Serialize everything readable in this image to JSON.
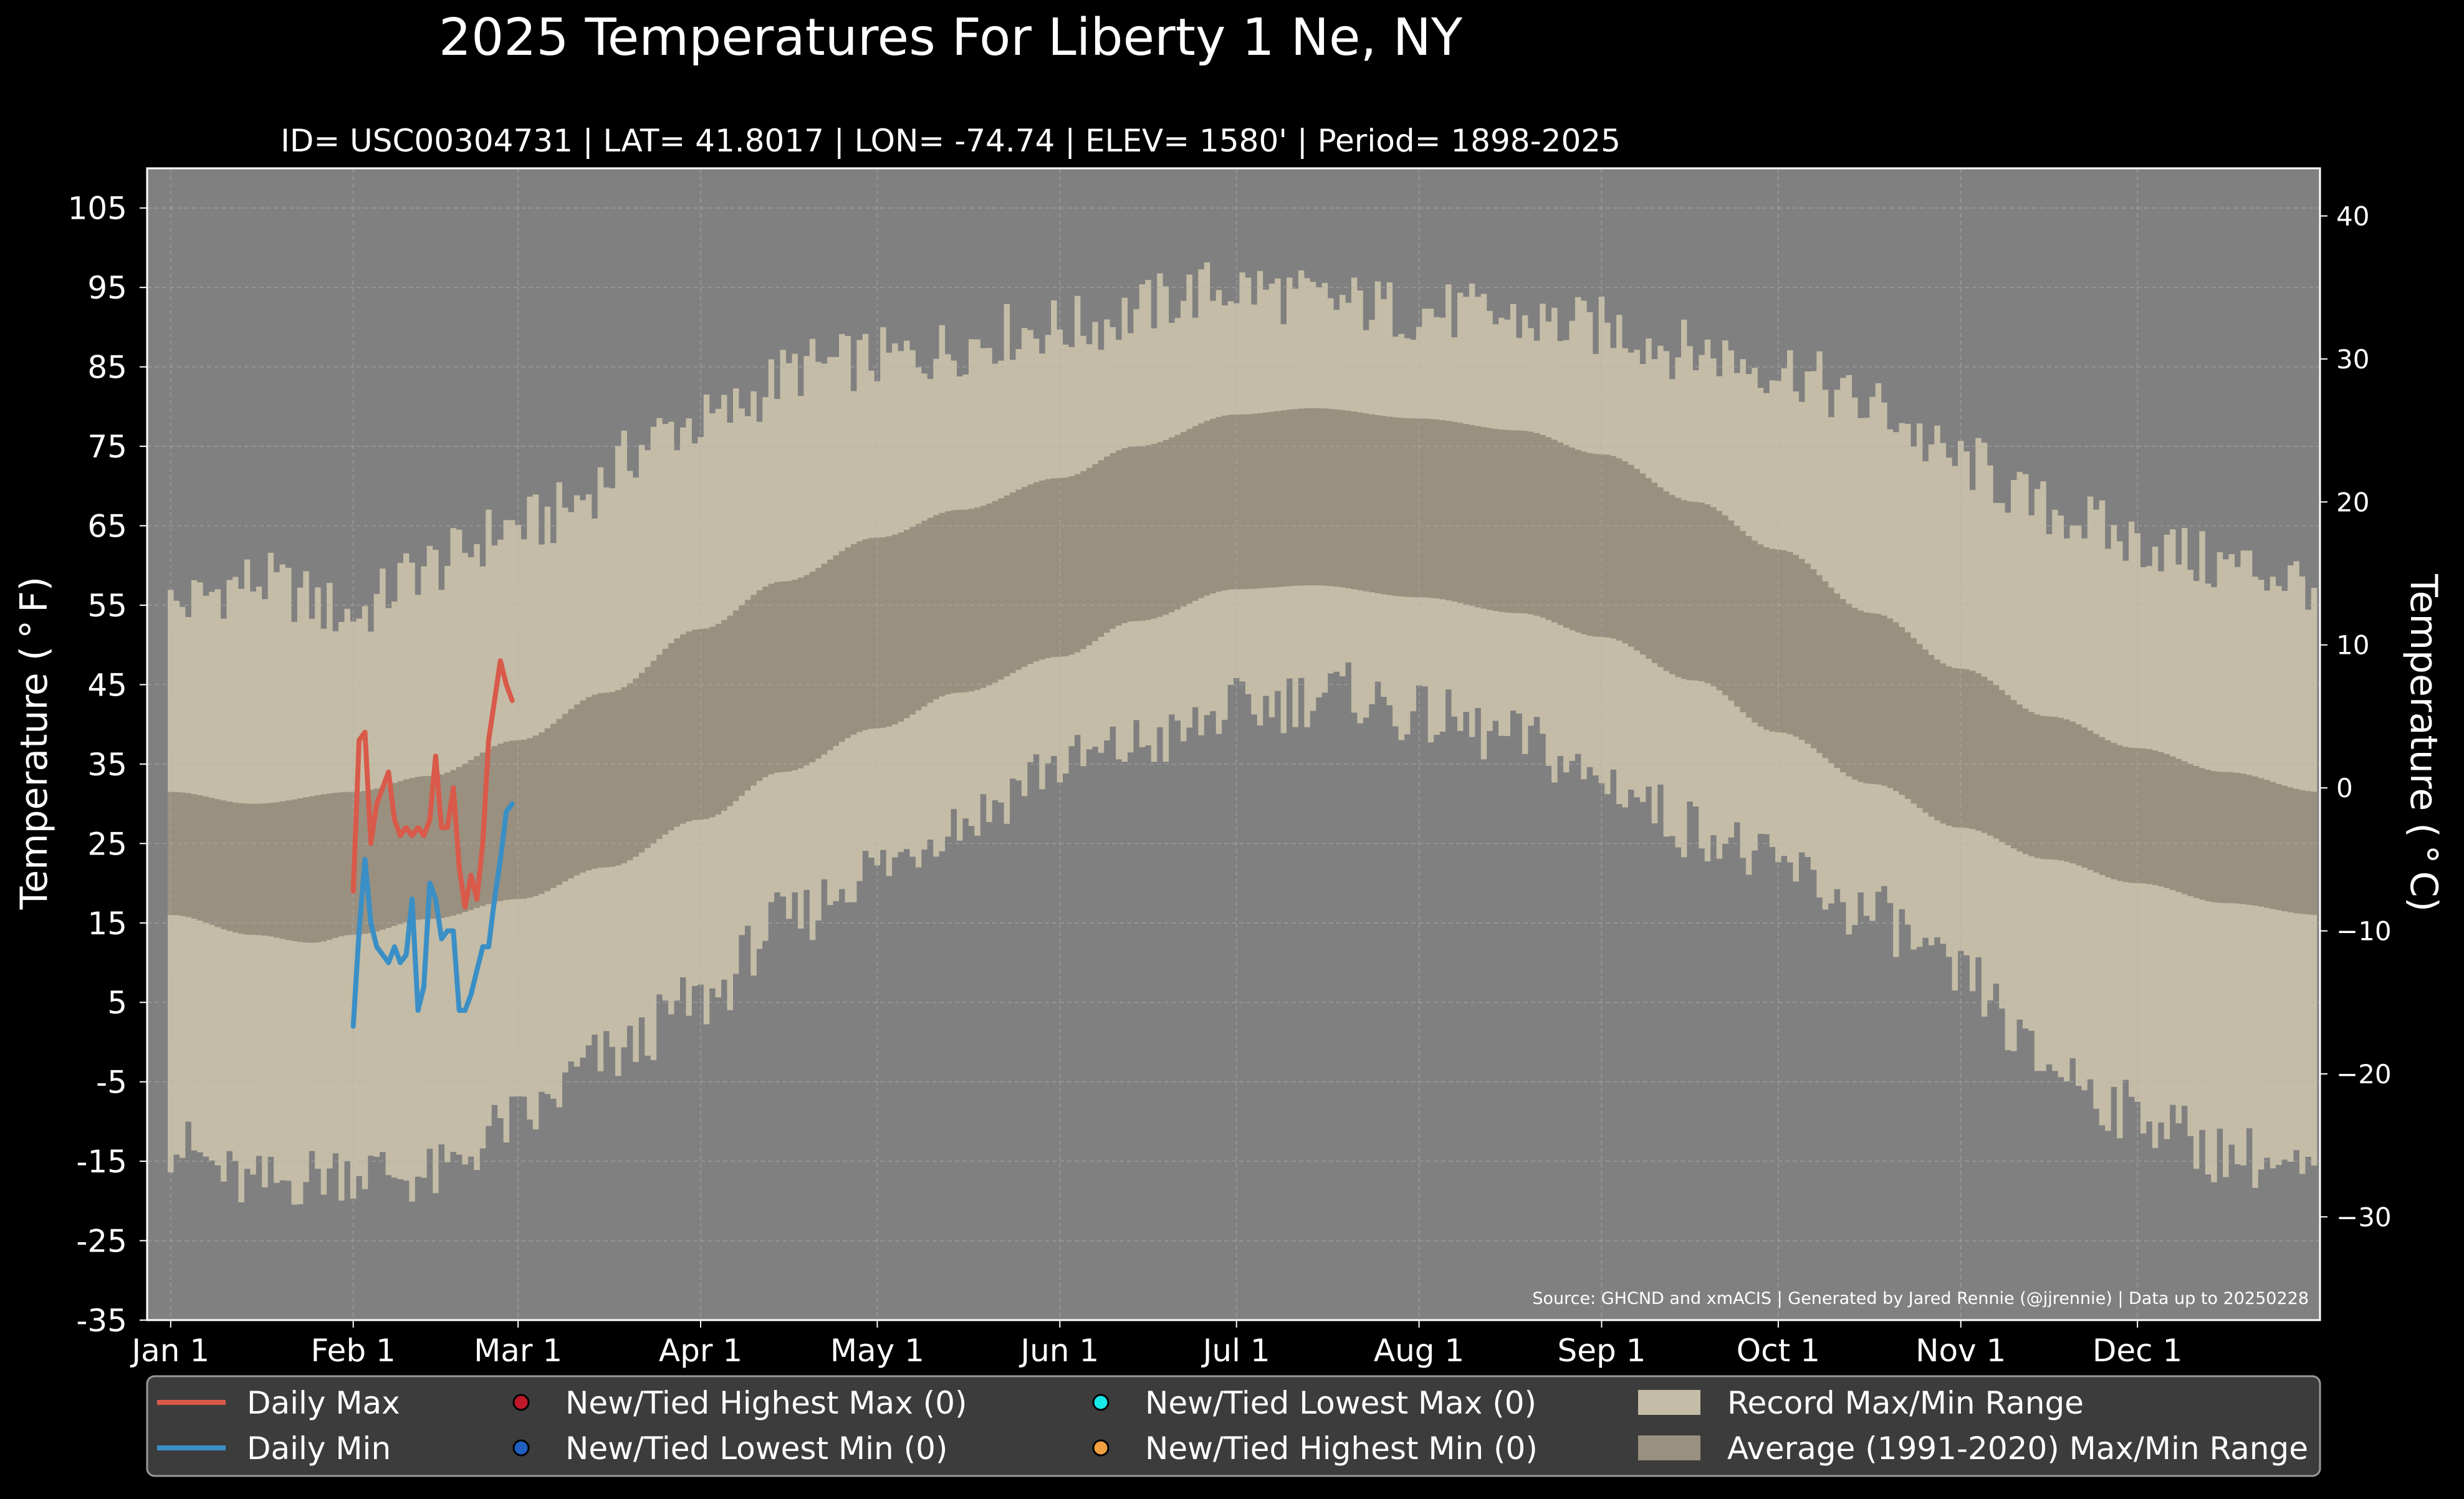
{
  "chart_data": {
    "type": "line",
    "title": "2025 Temperatures For Liberty 1 Ne, NY",
    "subtitle": "ID= USC00304731 | LAT= 41.8017 | LON= -74.74 | ELEV= 1580' | Period= 1898-2025",
    "ylabel": "Temperature ($^\\circ$F)",
    "ylabel_display": "Temperature ( ° F)",
    "ylabel_right": "Temperature ( ° C)",
    "ylim": [
      -35,
      110
    ],
    "ylim_c": [
      -37.22,
      43.33
    ],
    "yticks": [
      "105",
      "95",
      "85",
      "75",
      "65",
      "55",
      "45",
      "35",
      "25",
      "15",
      "5",
      "-5",
      "-15",
      "-25",
      "-35"
    ],
    "yticks_c": [
      "40",
      "30",
      "20",
      "10",
      "0",
      "−10",
      "−20",
      "−30"
    ],
    "xticks": [
      {
        "label": "Jan 1",
        "day": 1
      },
      {
        "label": "Feb 1",
        "day": 32
      },
      {
        "label": "Mar 1",
        "day": 60
      },
      {
        "label": "Apr 1",
        "day": 91
      },
      {
        "label": "May 1",
        "day": 121
      },
      {
        "label": "Jun 1",
        "day": 152
      },
      {
        "label": "Jul 1",
        "day": 182
      },
      {
        "label": "Aug 1",
        "day": 213
      },
      {
        "label": "Sep 1",
        "day": 244
      },
      {
        "label": "Oct 1",
        "day": 274
      },
      {
        "label": "Nov 1",
        "day": 305
      },
      {
        "label": "Dec 1",
        "day": 335
      }
    ],
    "xlim": [
      -3,
      366
    ],
    "grid": true,
    "source": "Source: GHCND and xmACIS | Generated by Jared Rennie (@jjrennie) | Data up to 20250228",
    "record_max_keypoints": [
      [
        1,
        55
      ],
      [
        15,
        58
      ],
      [
        32,
        54
      ],
      [
        45,
        60
      ],
      [
        60,
        65
      ],
      [
        91,
        78
      ],
      [
        110,
        85
      ],
      [
        121,
        86
      ],
      [
        152,
        90
      ],
      [
        182,
        95
      ],
      [
        200,
        93
      ],
      [
        213,
        92
      ],
      [
        244,
        90
      ],
      [
        260,
        87
      ],
      [
        274,
        85
      ],
      [
        290,
        80
      ],
      [
        305,
        73
      ],
      [
        320,
        67
      ],
      [
        335,
        63
      ],
      [
        350,
        60
      ],
      [
        366,
        58
      ]
    ],
    "record_min_keypoints": [
      [
        1,
        -13
      ],
      [
        15,
        -18
      ],
      [
        32,
        -16
      ],
      [
        45,
        -17
      ],
      [
        60,
        -10
      ],
      [
        75,
        -2
      ],
      [
        91,
        5
      ],
      [
        105,
        15
      ],
      [
        121,
        22
      ],
      [
        135,
        28
      ],
      [
        152,
        35
      ],
      [
        170,
        38
      ],
      [
        182,
        42
      ],
      [
        200,
        44
      ],
      [
        213,
        41
      ],
      [
        230,
        38
      ],
      [
        244,
        33
      ],
      [
        260,
        27
      ],
      [
        274,
        22
      ],
      [
        290,
        16
      ],
      [
        305,
        8
      ],
      [
        320,
        -3
      ],
      [
        335,
        -9
      ],
      [
        350,
        -14
      ],
      [
        366,
        -17
      ]
    ],
    "avg_max_keypoints": [
      [
        1,
        31.5
      ],
      [
        15,
        30
      ],
      [
        32,
        31.5
      ],
      [
        45,
        33.5
      ],
      [
        60,
        38
      ],
      [
        75,
        44
      ],
      [
        91,
        52
      ],
      [
        105,
        58
      ],
      [
        121,
        63.5
      ],
      [
        135,
        67
      ],
      [
        152,
        71
      ],
      [
        165,
        75
      ],
      [
        182,
        79
      ],
      [
        195,
        79.8
      ],
      [
        213,
        78.5
      ],
      [
        230,
        77
      ],
      [
        244,
        74
      ],
      [
        260,
        68
      ],
      [
        274,
        62
      ],
      [
        290,
        54
      ],
      [
        305,
        47
      ],
      [
        320,
        41
      ],
      [
        335,
        37
      ],
      [
        350,
        34
      ],
      [
        366,
        31.5
      ]
    ],
    "avg_min_keypoints": [
      [
        1,
        16
      ],
      [
        15,
        13.5
      ],
      [
        25,
        12.5
      ],
      [
        32,
        13.5
      ],
      [
        45,
        15.5
      ],
      [
        60,
        18
      ],
      [
        75,
        22
      ],
      [
        91,
        28
      ],
      [
        105,
        34
      ],
      [
        121,
        39.5
      ],
      [
        135,
        44
      ],
      [
        152,
        48.5
      ],
      [
        165,
        53
      ],
      [
        182,
        57
      ],
      [
        195,
        57.5
      ],
      [
        213,
        56
      ],
      [
        230,
        54
      ],
      [
        244,
        51
      ],
      [
        260,
        45.5
      ],
      [
        274,
        39
      ],
      [
        290,
        32.5
      ],
      [
        305,
        27
      ],
      [
        320,
        23
      ],
      [
        335,
        20
      ],
      [
        350,
        17.5
      ],
      [
        366,
        16
      ]
    ],
    "series": [
      {
        "name": "Daily Max",
        "color": "#d95a4a",
        "x": [
          32,
          33,
          34,
          35,
          36,
          37,
          38,
          39,
          40,
          41,
          42,
          43,
          44,
          45,
          46,
          47,
          48,
          49,
          50,
          51,
          52,
          53,
          54,
          55,
          56,
          57,
          58,
          59
        ],
        "values": [
          19,
          38,
          39,
          25,
          30,
          32,
          34,
          28,
          26,
          27,
          26,
          27,
          26,
          28,
          36,
          27,
          27,
          32,
          22,
          17,
          21,
          18,
          25,
          38,
          43,
          48,
          45,
          43
        ]
      },
      {
        "name": "Daily Min",
        "color": "#3a8fc6",
        "x": [
          32,
          33,
          34,
          35,
          36,
          37,
          38,
          39,
          40,
          41,
          42,
          43,
          44,
          45,
          46,
          47,
          48,
          49,
          50,
          51,
          52,
          53,
          54,
          55,
          56,
          57,
          58,
          59
        ],
        "values": [
          2,
          14,
          23,
          15,
          12,
          11,
          10,
          12,
          10,
          11,
          18,
          4,
          7,
          20,
          18,
          13,
          14,
          14,
          4,
          4,
          6,
          9,
          12,
          12,
          18,
          23,
          29,
          30
        ]
      }
    ],
    "colors": {
      "bg": "#000000",
      "plot_bg": "#808080",
      "record": "#c4bca6",
      "average": "#999080",
      "grid": "#b0b0b0",
      "legend_bg": "#3c3c3c"
    },
    "legend": {
      "placement": "below-plot",
      "entries": [
        {
          "label": "Daily Max",
          "kind": "line",
          "color": "#d95a4a"
        },
        {
          "label": "Daily Min",
          "kind": "line",
          "color": "#3a8fc6"
        },
        {
          "label": "New/Tied Highest Max (0)",
          "kind": "dot",
          "color": "#c0182a"
        },
        {
          "label": "New/Tied Lowest Min (0)",
          "kind": "dot",
          "color": "#2060c0"
        },
        {
          "label": "New/Tied Lowest Max (0)",
          "kind": "dot",
          "color": "#19e8e8"
        },
        {
          "label": "New/Tied Highest Min (0)",
          "kind": "dot",
          "color": "#f2a040"
        },
        {
          "label": "Record Max/Min Range",
          "kind": "patch",
          "color": "#c4bca6"
        },
        {
          "label": "Average (1991-2020) Max/Min Range",
          "kind": "patch",
          "color": "#999080"
        }
      ]
    }
  }
}
